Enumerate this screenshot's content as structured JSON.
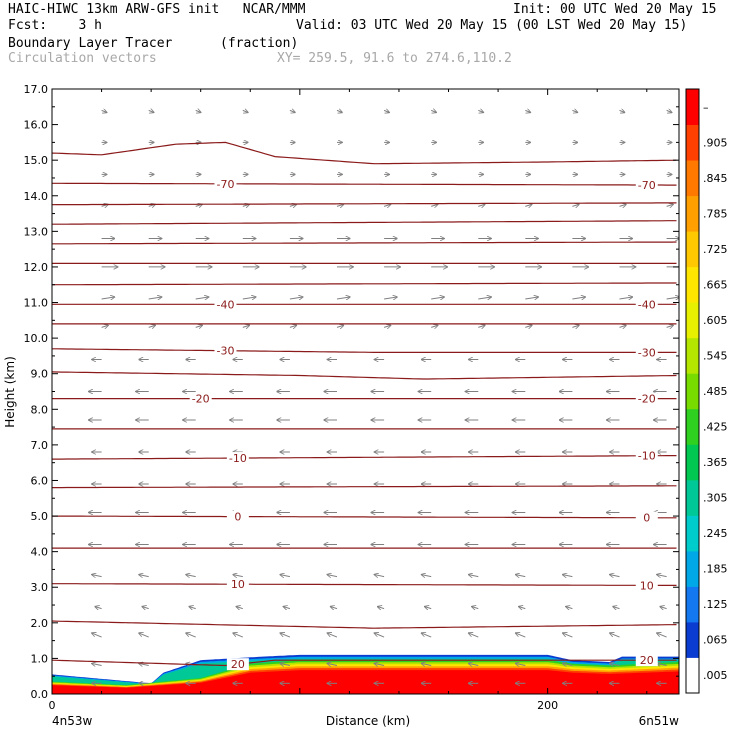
{
  "header": {
    "model_line": "HAIC-HIWC 13km ARW-GFS init   NCAR/MMM",
    "init": "Init: 00 UTC Wed 20 May 15",
    "fcst": "Fcst:    3 h",
    "valid": "Valid: 03 UTC Wed 20 May 15 (00 LST Wed 20 May 15)",
    "field": "Boundary Layer Tracer",
    "units": "(fraction)",
    "vectors": "Circulation vectors",
    "xy": "XY= 259.5, 91.6 to 274.6,110.2"
  },
  "colors": {
    "contour": "#8b1a1a",
    "vector": "#808080",
    "frame": "#000000"
  },
  "chart_data": {
    "type": "heatmap",
    "title": "",
    "ylabel": "Height (km)",
    "xlabel": "Distance (km)",
    "xlim": [
      0,
      253
    ],
    "ylim": [
      0,
      17
    ],
    "x_ticks": [
      {
        "v": 0,
        "label": "0"
      },
      {
        "v": 200,
        "label": "200"
      }
    ],
    "y_ticks": [
      "0.0",
      "1.0",
      "2.0",
      "3.0",
      "4.0",
      "5.0",
      "6.0",
      "7.0",
      "8.0",
      "9.0",
      "10.0",
      "11.0",
      "12.0",
      "13.0",
      "14.0",
      "15.0",
      "16.0",
      "17.0"
    ],
    "x_endpoints": {
      "left": "4n53w",
      "right": "6n51w"
    },
    "colorbar": {
      "labels": [
        ".005",
        ".065",
        ".125",
        ".185",
        ".245",
        ".305",
        ".365",
        ".425",
        ".485",
        ".545",
        ".605",
        ".665",
        ".725",
        ".785",
        ".845",
        ".905",
        "–"
      ],
      "colors": [
        "#ffffff",
        "#0a3cd2",
        "#1478f0",
        "#00a8e8",
        "#00cccc",
        "#00c896",
        "#00c850",
        "#30d020",
        "#78dc00",
        "#b4e600",
        "#e6f000",
        "#ffe600",
        "#ffc800",
        "#ffa000",
        "#ff7800",
        "#ff4000",
        "#ff0000"
      ]
    },
    "isotherms": [
      {
        "pts": [
          [
            0,
            15.2
          ],
          [
            20,
            15.15
          ],
          [
            50,
            15.45
          ],
          [
            70,
            15.5
          ],
          [
            90,
            15.1
          ],
          [
            130,
            14.9
          ],
          [
            200,
            14.95
          ],
          [
            253,
            15.0
          ]
        ]
      },
      {
        "pts": [
          [
            0,
            14.35
          ],
          [
            253,
            14.3
          ]
        ],
        "label": "-70",
        "at": [
          70,
          240
        ]
      },
      {
        "pts": [
          [
            0,
            13.75
          ],
          [
            253,
            13.8
          ]
        ]
      },
      {
        "pts": [
          [
            0,
            13.2
          ],
          [
            253,
            13.3
          ]
        ]
      },
      {
        "pts": [
          [
            0,
            12.65
          ],
          [
            253,
            12.7
          ]
        ]
      },
      {
        "pts": [
          [
            0,
            12.1
          ],
          [
            253,
            12.1
          ]
        ]
      },
      {
        "pts": [
          [
            0,
            11.5
          ],
          [
            253,
            11.55
          ]
        ]
      },
      {
        "pts": [
          [
            0,
            10.95
          ],
          [
            253,
            10.95
          ]
        ],
        "label": "-40",
        "at": [
          70,
          240
        ]
      },
      {
        "pts": [
          [
            0,
            10.4
          ],
          [
            253,
            10.4
          ]
        ]
      },
      {
        "pts": [
          [
            0,
            9.7
          ],
          [
            130,
            9.6
          ],
          [
            253,
            9.6
          ]
        ],
        "label": "-30",
        "at": [
          70,
          240
        ]
      },
      {
        "pts": [
          [
            0,
            9.05
          ],
          [
            100,
            8.95
          ],
          [
            150,
            8.85
          ],
          [
            253,
            8.95
          ]
        ]
      },
      {
        "pts": [
          [
            0,
            8.3
          ],
          [
            253,
            8.3
          ]
        ],
        "label": "-20",
        "at": [
          60,
          240
        ]
      },
      {
        "pts": [
          [
            0,
            7.45
          ],
          [
            253,
            7.45
          ]
        ]
      },
      {
        "pts": [
          [
            0,
            6.6
          ],
          [
            253,
            6.7
          ]
        ],
        "label": "-10",
        "at": [
          75,
          240
        ]
      },
      {
        "pts": [
          [
            0,
            5.8
          ],
          [
            253,
            5.85
          ]
        ]
      },
      {
        "pts": [
          [
            0,
            5.0
          ],
          [
            253,
            4.95
          ]
        ],
        "label": "0",
        "at": [
          75,
          240
        ]
      },
      {
        "pts": [
          [
            0,
            4.1
          ],
          [
            253,
            4.1
          ]
        ]
      },
      {
        "pts": [
          [
            0,
            3.1
          ],
          [
            253,
            3.05
          ]
        ],
        "label": "10",
        "at": [
          75,
          240
        ]
      },
      {
        "pts": [
          [
            0,
            2.05
          ],
          [
            130,
            1.85
          ],
          [
            253,
            1.95
          ]
        ]
      },
      {
        "pts": [
          [
            0,
            0.95
          ],
          [
            70,
            0.8
          ],
          [
            90,
            0.95
          ],
          [
            253,
            0.95
          ]
        ],
        "label": "20",
        "at": [
          75,
          240
        ]
      }
    ],
    "tracer": {
      "note": "fraction field concentrated in the boundary layer",
      "top_km": [
        [
          0,
          0.55
        ],
        [
          40,
          0.3
        ],
        [
          45,
          0.6
        ],
        [
          60,
          0.95
        ],
        [
          85,
          1.05
        ],
        [
          100,
          1.1
        ],
        [
          200,
          1.1
        ],
        [
          210,
          0.95
        ],
        [
          225,
          0.9
        ],
        [
          230,
          1.05
        ],
        [
          253,
          1.05
        ]
      ],
      "core_top_km": [
        [
          0,
          0.35
        ],
        [
          30,
          0.25
        ],
        [
          60,
          0.45
        ],
        [
          80,
          0.85
        ],
        [
          100,
          0.95
        ],
        [
          200,
          0.95
        ],
        [
          210,
          0.85
        ],
        [
          225,
          0.8
        ],
        [
          253,
          0.9
        ]
      ]
    },
    "wind": {
      "note": "circulation vectors: easterly at low levels, westerly aloft (m/s, schematic)",
      "levels_km": [
        0.3,
        0.8,
        1.6,
        2.4,
        3.3,
        4.2,
        5.1,
        5.9,
        6.8,
        7.7,
        8.5,
        9.4,
        10.3,
        11.1,
        12.0,
        12.8,
        13.7,
        14.6,
        15.5,
        16.4
      ],
      "u": [
        -3,
        -3,
        -3,
        -2,
        -3,
        -4,
        -4,
        -3,
        -3,
        -4,
        -4,
        -3,
        2,
        4,
        5,
        4,
        2,
        1,
        1,
        1
      ],
      "w": [
        0,
        1,
        2,
        1,
        1,
        0,
        0,
        0,
        0,
        0,
        0,
        0,
        1,
        1,
        0,
        0,
        1,
        0,
        0,
        -1
      ]
    }
  }
}
